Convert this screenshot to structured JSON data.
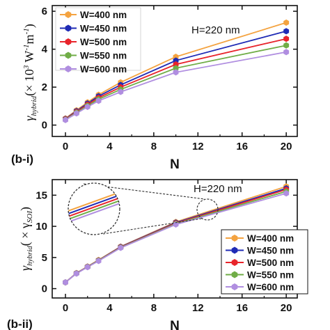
{
  "chart_data": [
    {
      "panel": "(b-i)",
      "type": "line",
      "xlabel": "N",
      "ylabel_parts": [
        "γ",
        "hybrid",
        "(× 10",
        "3",
        " W",
        "-1",
        "m",
        "-1",
        ")"
      ],
      "annotation": "H=220 nm",
      "x": [
        0,
        1,
        2,
        3,
        5,
        10,
        20
      ],
      "xlim": [
        -1.2,
        21
      ],
      "ylim": [
        -0.6,
        6.3
      ],
      "xticks": [
        "0",
        "4",
        "8",
        "12",
        "16",
        "20"
      ],
      "yticks": [
        "0",
        "2",
        "4",
        "6"
      ],
      "legend_position": "top-left",
      "series": [
        {
          "name": "W=400 nm",
          "color": "#f4a340",
          "marker": "hexagon",
          "values": [
            0.35,
            0.78,
            1.2,
            1.6,
            2.25,
            3.6,
            5.4
          ]
        },
        {
          "name": "W=450 nm",
          "color": "#1f2bb5",
          "marker": "hexagon",
          "values": [
            0.33,
            0.74,
            1.14,
            1.52,
            2.12,
            3.4,
            4.95
          ]
        },
        {
          "name": "W=500 nm",
          "color": "#e8242b",
          "marker": "hexagon",
          "values": [
            0.31,
            0.7,
            1.08,
            1.44,
            2.0,
            3.2,
            4.55
          ]
        },
        {
          "name": "W=550 nm",
          "color": "#70ad47",
          "marker": "hexagon",
          "values": [
            0.29,
            0.66,
            1.02,
            1.36,
            1.88,
            3.0,
            4.2
          ]
        },
        {
          "name": "W=600 nm",
          "color": "#b08ee0",
          "marker": "hexagon",
          "values": [
            0.27,
            0.62,
            0.96,
            1.28,
            1.75,
            2.78,
            3.85
          ]
        }
      ]
    },
    {
      "panel": "(b-ii)",
      "type": "line",
      "xlabel": "N",
      "ylabel_parts": [
        "γ",
        "hybrid",
        "( × γ",
        "SOI",
        ")"
      ],
      "annotation": "H=220 nm",
      "x": [
        0,
        1,
        2,
        3,
        5,
        10,
        20
      ],
      "xlim": [
        -1.2,
        21
      ],
      "ylim": [
        -1.5,
        17.5
      ],
      "xticks": [
        "0",
        "4",
        "8",
        "12",
        "16",
        "20"
      ],
      "yticks": [
        "0",
        "5",
        "10",
        "15"
      ],
      "legend_position": "bottom-right",
      "series": [
        {
          "name": "W=400 nm",
          "color": "#f4a340",
          "marker": "hexagon",
          "values": [
            1.0,
            2.5,
            3.55,
            4.6,
            6.75,
            10.7,
            16.4
          ]
        },
        {
          "name": "W=450 nm",
          "color": "#1f2bb5",
          "marker": "hexagon",
          "values": [
            1.0,
            2.48,
            3.52,
            4.55,
            6.7,
            10.6,
            16.1
          ]
        },
        {
          "name": "W=500 nm",
          "color": "#e8242b",
          "marker": "hexagon",
          "values": [
            1.0,
            2.46,
            3.5,
            4.52,
            6.65,
            10.5,
            15.9
          ]
        },
        {
          "name": "W=550 nm",
          "color": "#70ad47",
          "marker": "hexagon",
          "values": [
            1.0,
            2.44,
            3.48,
            4.5,
            6.6,
            10.4,
            15.6
          ]
        },
        {
          "name": "W=600 nm",
          "color": "#b08ee0",
          "marker": "hexagon",
          "values": [
            1.0,
            2.42,
            3.45,
            4.45,
            6.55,
            10.3,
            15.3
          ]
        }
      ]
    }
  ]
}
